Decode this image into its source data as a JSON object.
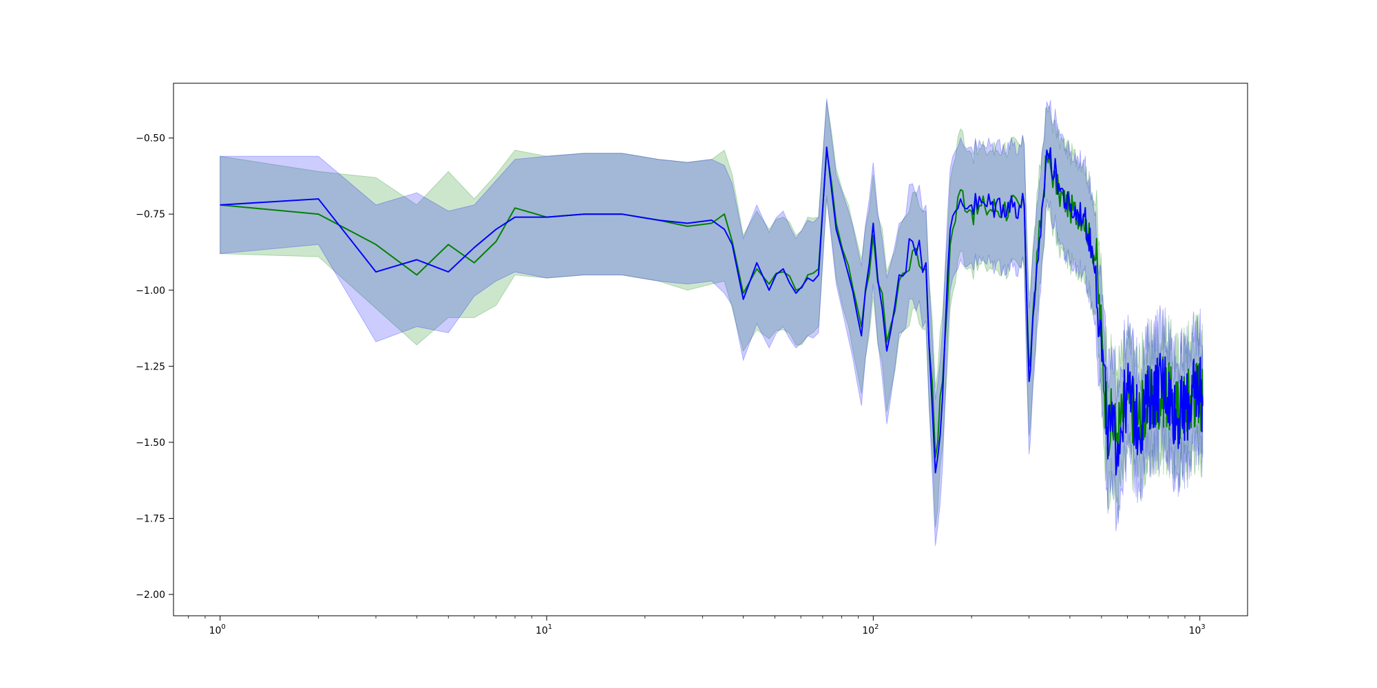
{
  "chart_data": {
    "type": "line",
    "title": "",
    "xlabel": "",
    "ylabel": "",
    "xscale": "log",
    "xlim": [
      0.72,
      1400
    ],
    "ylim": [
      -2.07,
      -0.32
    ],
    "grid": false,
    "legend": "none",
    "x_ticks": [
      {
        "base": "10",
        "exp": "0",
        "value": 1
      },
      {
        "base": "10",
        "exp": "1",
        "value": 10
      },
      {
        "base": "10",
        "exp": "2",
        "value": 100
      },
      {
        "base": "10",
        "exp": "3",
        "value": 1000
      }
    ],
    "y_ticks": [
      {
        "label": "−0.50",
        "value": -0.5
      },
      {
        "label": "−0.75",
        "value": -0.75
      },
      {
        "label": "−1.00",
        "value": -1.0
      },
      {
        "label": "−1.25",
        "value": -1.25
      },
      {
        "label": "−1.50",
        "value": -1.5
      },
      {
        "label": "−1.75",
        "value": -1.75
      },
      {
        "label": "−2.00",
        "value": -2.0
      }
    ],
    "series": [
      {
        "color": "#008000",
        "band_color": "#008000",
        "band_opacity": 0.2,
        "points": [
          [
            1,
            -0.72,
            -0.56,
            -0.88
          ],
          [
            2,
            -0.75,
            -0.61,
            -0.89
          ],
          [
            3,
            -0.85,
            -0.63,
            -1.06
          ],
          [
            4,
            -0.95,
            -0.72,
            -1.18
          ],
          [
            5,
            -0.85,
            -0.61,
            -1.09
          ],
          [
            6,
            -0.91,
            -0.7,
            -1.09
          ],
          [
            7,
            -0.84,
            -0.62,
            -1.05
          ],
          [
            8,
            -0.73,
            -0.54,
            -0.95
          ],
          [
            10,
            -0.76,
            -0.56,
            -0.96
          ],
          [
            13,
            -0.75,
            -0.55,
            -0.95
          ],
          [
            17,
            -0.75,
            -0.55,
            -0.95
          ],
          [
            22,
            -0.77,
            -0.57,
            -0.97
          ],
          [
            27,
            -0.79,
            -0.58,
            -1.0
          ],
          [
            32,
            -0.78,
            -0.57,
            -0.98
          ],
          [
            35,
            -0.75,
            -0.54,
            -0.97
          ],
          [
            37,
            -0.84,
            -0.62,
            -1.06
          ],
          [
            40,
            -1.01,
            -0.82,
            -1.2
          ],
          [
            44,
            -0.93,
            -0.74,
            -1.13
          ],
          [
            48,
            -0.98,
            -0.8,
            -1.16
          ],
          [
            53,
            -0.94,
            -0.76,
            -1.13
          ],
          [
            58,
            -1.0,
            -0.82,
            -1.18
          ],
          [
            63,
            -0.95,
            -0.76,
            -1.15
          ],
          [
            68,
            -0.93,
            -0.76,
            -1.12
          ],
          [
            72,
            -0.54,
            -0.38,
            -0.7
          ],
          [
            77,
            -0.78,
            -0.6,
            -0.96
          ],
          [
            84,
            -0.92,
            -0.72,
            -1.12
          ],
          [
            92,
            -1.12,
            -0.9,
            -1.34
          ],
          [
            100,
            -0.82,
            -0.62,
            -1.02
          ],
          [
            110,
            -1.17,
            -0.94,
            -1.4
          ],
          [
            120,
            -0.97,
            -0.8,
            -1.16
          ],
          [
            132,
            -0.87,
            -0.68,
            -1.06
          ],
          [
            145,
            -0.93,
            -0.74,
            -1.13
          ],
          [
            155,
            -1.55,
            -1.32,
            -1.78
          ],
          [
            163,
            -1.3,
            -1.08,
            -1.52
          ],
          [
            172,
            -0.85,
            -0.64,
            -1.06
          ],
          [
            185,
            -0.67,
            -0.47,
            -0.87
          ],
          [
            200,
            -0.74,
            -0.55,
            -0.93
          ],
          [
            220,
            -0.73,
            -0.54,
            -0.92
          ],
          [
            250,
            -0.73,
            -0.53,
            -0.93
          ],
          [
            290,
            -0.73,
            -0.53,
            -0.93
          ],
          [
            300,
            -1.25,
            -1.02,
            -1.48
          ],
          [
            320,
            -0.86,
            -0.66,
            -1.06
          ],
          [
            340,
            -0.56,
            -0.4,
            -0.72
          ],
          [
            370,
            -0.68,
            -0.5,
            -0.86
          ],
          [
            400,
            -0.73,
            -0.55,
            -0.91
          ],
          [
            440,
            -0.76,
            -0.58,
            -0.94
          ],
          [
            480,
            -0.9,
            -0.72,
            -1.08
          ],
          [
            520,
            -1.42,
            -1.22,
            -1.62
          ],
          [
            560,
            -1.47,
            -1.26,
            -1.68
          ],
          [
            600,
            -1.36,
            -1.18,
            -1.54
          ],
          [
            650,
            -1.42,
            -1.24,
            -1.6
          ],
          [
            700,
            -1.37,
            -1.19,
            -1.55
          ],
          [
            780,
            -1.33,
            -1.15,
            -1.51
          ],
          [
            850,
            -1.4,
            -1.22,
            -1.58
          ],
          [
            920,
            -1.36,
            -1.18,
            -1.54
          ],
          [
            1000,
            -1.32,
            -1.14,
            -1.5
          ],
          [
            1020,
            -1.37,
            -1.2,
            -1.54
          ]
        ]
      },
      {
        "color": "#0000ff",
        "band_color": "#0000ff",
        "band_opacity": 0.2,
        "points": [
          [
            1,
            -0.72,
            -0.56,
            -0.88
          ],
          [
            2,
            -0.7,
            -0.56,
            -0.85
          ],
          [
            3,
            -0.94,
            -0.72,
            -1.17
          ],
          [
            4,
            -0.9,
            -0.68,
            -1.12
          ],
          [
            5,
            -0.94,
            -0.74,
            -1.14
          ],
          [
            6,
            -0.86,
            -0.72,
            -1.02
          ],
          [
            7,
            -0.8,
            -0.64,
            -0.97
          ],
          [
            8,
            -0.76,
            -0.57,
            -0.94
          ],
          [
            10,
            -0.76,
            -0.56,
            -0.96
          ],
          [
            13,
            -0.75,
            -0.55,
            -0.95
          ],
          [
            17,
            -0.75,
            -0.55,
            -0.95
          ],
          [
            22,
            -0.77,
            -0.57,
            -0.97
          ],
          [
            27,
            -0.78,
            -0.58,
            -0.98
          ],
          [
            32,
            -0.77,
            -0.57,
            -0.97
          ],
          [
            35,
            -0.8,
            -0.59,
            -1.01
          ],
          [
            37,
            -0.85,
            -0.65,
            -1.05
          ],
          [
            40,
            -1.03,
            -0.83,
            -1.23
          ],
          [
            44,
            -0.91,
            -0.72,
            -1.11
          ],
          [
            48,
            -1.0,
            -0.81,
            -1.19
          ],
          [
            53,
            -0.93,
            -0.74,
            -1.12
          ],
          [
            58,
            -1.01,
            -0.83,
            -1.19
          ],
          [
            63,
            -0.96,
            -0.77,
            -1.15
          ],
          [
            68,
            -0.95,
            -0.76,
            -1.14
          ],
          [
            72,
            -0.53,
            -0.37,
            -0.69
          ],
          [
            77,
            -0.8,
            -0.62,
            -0.98
          ],
          [
            84,
            -0.95,
            -0.74,
            -1.16
          ],
          [
            92,
            -1.15,
            -0.92,
            -1.38
          ],
          [
            100,
            -0.78,
            -0.58,
            -0.98
          ],
          [
            110,
            -1.2,
            -0.96,
            -1.44
          ],
          [
            120,
            -0.95,
            -0.78,
            -1.14
          ],
          [
            132,
            -0.84,
            -0.65,
            -1.03
          ],
          [
            145,
            -0.91,
            -0.72,
            -1.1
          ],
          [
            155,
            -1.6,
            -1.36,
            -1.84
          ],
          [
            163,
            -1.35,
            -1.12,
            -1.58
          ],
          [
            172,
            -0.8,
            -0.6,
            -1.0
          ],
          [
            185,
            -0.7,
            -0.5,
            -0.9
          ],
          [
            200,
            -0.72,
            -0.53,
            -0.91
          ],
          [
            220,
            -0.72,
            -0.53,
            -0.91
          ],
          [
            250,
            -0.72,
            -0.52,
            -0.92
          ],
          [
            290,
            -0.72,
            -0.52,
            -0.92
          ],
          [
            300,
            -1.3,
            -1.06,
            -1.54
          ],
          [
            320,
            -0.9,
            -0.7,
            -1.1
          ],
          [
            340,
            -0.54,
            -0.38,
            -0.7
          ],
          [
            370,
            -0.65,
            -0.47,
            -0.83
          ],
          [
            400,
            -0.74,
            -0.56,
            -0.92
          ],
          [
            440,
            -0.75,
            -0.57,
            -0.93
          ],
          [
            480,
            -0.92,
            -0.74,
            -1.1
          ],
          [
            520,
            -1.45,
            -1.25,
            -1.65
          ],
          [
            560,
            -1.5,
            -1.29,
            -1.71
          ],
          [
            600,
            -1.33,
            -1.15,
            -1.51
          ],
          [
            650,
            -1.45,
            -1.27,
            -1.63
          ],
          [
            700,
            -1.35,
            -1.17,
            -1.53
          ],
          [
            780,
            -1.3,
            -1.12,
            -1.48
          ],
          [
            850,
            -1.42,
            -1.24,
            -1.6
          ],
          [
            920,
            -1.38,
            -1.2,
            -1.56
          ],
          [
            1000,
            -1.3,
            -1.12,
            -1.48
          ],
          [
            1020,
            -1.38,
            -1.21,
            -1.55
          ]
        ]
      }
    ]
  }
}
